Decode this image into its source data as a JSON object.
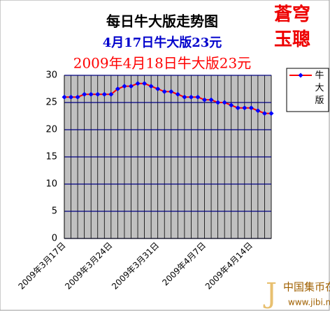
{
  "chart_data": {
    "type": "line",
    "title": "每日牛大版走势图",
    "subtitle": "4月17日牛大版23元",
    "annotation": "2009年4月18日牛大版23元",
    "categories": [
      "2009年3月17日",
      null,
      null,
      null,
      null,
      null,
      null,
      "2009年3月24日",
      null,
      null,
      null,
      null,
      null,
      null,
      "2009年3月31日",
      null,
      null,
      null,
      null,
      null,
      null,
      "2009年4月7日",
      null,
      null,
      null,
      null,
      null,
      null,
      "2009年4月14日",
      null,
      null,
      null
    ],
    "series": [
      {
        "name": "牛大版",
        "color": "#ff0000",
        "marker_color": "#0000ff",
        "values": [
          26,
          26,
          26,
          26.5,
          26.5,
          26.5,
          26.5,
          26.5,
          27.5,
          28,
          28,
          28.5,
          28.5,
          28,
          27.5,
          27,
          27,
          26.5,
          26,
          26,
          26,
          25.5,
          25.5,
          25,
          25,
          24.5,
          24,
          24,
          24,
          23.5,
          23,
          23
        ]
      }
    ],
    "ylim": [
      0,
      30
    ],
    "yticks": [
      0,
      5,
      10,
      15,
      20,
      25,
      30
    ],
    "grid": true,
    "legend": "right"
  },
  "logo": [
    "蒼穹",
    "玉聰"
  ],
  "watermark": {
    "name": "中国集币在线",
    "url": "www.jibi.net"
  }
}
